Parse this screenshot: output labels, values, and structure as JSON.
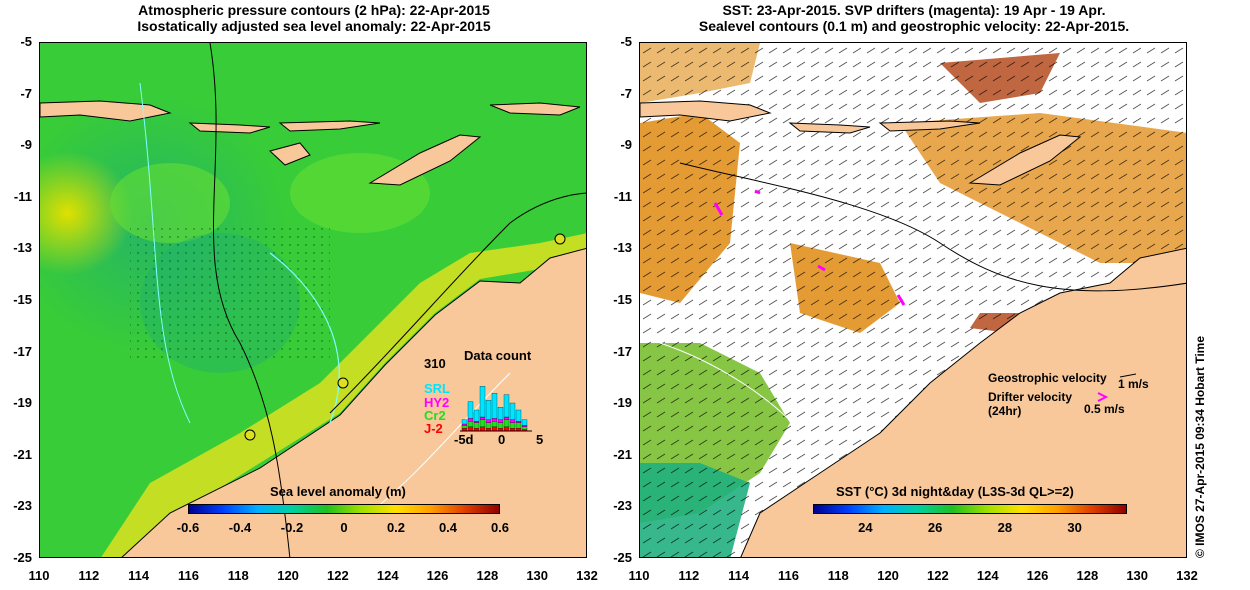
{
  "left": {
    "title_line1": "Atmospheric pressure contours (2 hPa): 22-Apr-2015",
    "title_line2": "Isostatically adjusted sea level anomaly: 22-Apr-2015",
    "colorbar_title": "Sea level anomaly (m)",
    "colorbar_ticks": [
      "-0.6",
      "-0.4",
      "-0.2",
      "0",
      "0.2",
      "0.4",
      "0.6"
    ],
    "count_value": "310",
    "count_title": "Data count",
    "missions": [
      {
        "name": "SRL",
        "color": "#00e5ff"
      },
      {
        "name": "HY2",
        "color": "#ff00ff"
      },
      {
        "name": "Cr2",
        "color": "#22dd22"
      },
      {
        "name": "J-2",
        "color": "#ff0000"
      }
    ],
    "hist_xticks": [
      "-5d",
      "0",
      "5"
    ],
    "hist_values": [
      {
        "srl": 3,
        "hy2": 1,
        "cr2": 2,
        "j2": 2
      },
      {
        "srl": 12,
        "hy2": 2,
        "cr2": 4,
        "j2": 3
      },
      {
        "srl": 8,
        "hy2": 1,
        "cr2": 4,
        "j2": 2
      },
      {
        "srl": 22,
        "hy2": 2,
        "cr2": 5,
        "j2": 3
      },
      {
        "srl": 14,
        "hy2": 2,
        "cr2": 4,
        "j2": 2
      },
      {
        "srl": 18,
        "hy2": 2,
        "cr2": 4,
        "j2": 3
      },
      {
        "srl": 9,
        "hy2": 2,
        "cr2": 4,
        "j2": 2
      },
      {
        "srl": 16,
        "hy2": 2,
        "cr2": 5,
        "j2": 3
      },
      {
        "srl": 12,
        "hy2": 2,
        "cr2": 4,
        "j2": 2
      },
      {
        "srl": 8,
        "hy2": 1,
        "cr2": 4,
        "j2": 2
      },
      {
        "srl": 4,
        "hy2": 1,
        "cr2": 2,
        "j2": 1
      }
    ]
  },
  "right": {
    "title_line1": "SST: 23-Apr-2015. SVP drifters (magenta): 19 Apr - 19 Apr.",
    "title_line2": "Sealevel contours (0.1 m) and geostrophic velocity: 22-Apr-2015.",
    "colorbar_title": "SST (°C) 3d night&day (L3S-3d QL>=2)",
    "colorbar_ticks": [
      "24",
      "26",
      "28",
      "30"
    ],
    "geo_velocity_label": "Geostrophic velocity",
    "geo_velocity_scale": "1 m/s",
    "drifter_velocity_label": "Drifter velocity",
    "drifter_velocity_sub": "(24hr)",
    "drifter_velocity_scale": "0.5 m/s"
  },
  "axes": {
    "y_ticks": [
      "-5",
      "-7",
      "-9",
      "-11",
      "-13",
      "-15",
      "-17",
      "-19",
      "-21",
      "-23",
      "-25"
    ],
    "x_ticks": [
      "110",
      "112",
      "114",
      "116",
      "118",
      "120",
      "122",
      "124",
      "126",
      "128",
      "130",
      "132"
    ],
    "lat_range": [
      -25,
      -5
    ],
    "lon_range": [
      110,
      132
    ]
  },
  "copyright": "© IMOS 27-Apr-2015 09:34 Hobart Time",
  "colors": {
    "land": "#f8c89a",
    "ocean_green": "#30c830",
    "drifter": "#ff00ff"
  }
}
